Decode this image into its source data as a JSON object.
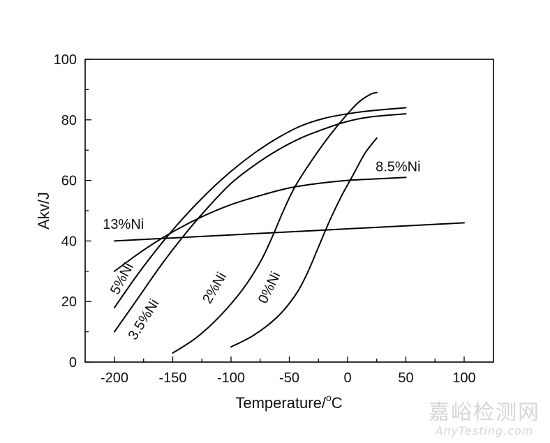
{
  "chart_data": {
    "type": "line",
    "title": "",
    "xlabel": "Temperature/°C",
    "xlabel_main": "Temperature/",
    "xlabel_sup": "o",
    "xlabel_unit": "C",
    "ylabel": "Akv/J",
    "xlim": [
      -225,
      125
    ],
    "ylim": [
      0,
      100
    ],
    "grid": false,
    "legend": "inline curve labels",
    "x_ticks": [
      -200,
      -150,
      -100,
      -50,
      0,
      50,
      100
    ],
    "x_tick_labels": [
      "-200",
      "-150",
      "-100",
      "-50",
      "0",
      "50",
      "100"
    ],
    "y_ticks": [
      0,
      20,
      40,
      60,
      80,
      100
    ],
    "y_tick_labels": [
      "0",
      "20",
      "40",
      "60",
      "80",
      "100"
    ],
    "series": [
      {
        "name": "0%Ni",
        "x": [
          -100,
          -80,
          -60,
          -45,
          -35,
          -25,
          -15,
          -5,
          5,
          15,
          25
        ],
        "y": [
          5,
          9,
          15,
          22,
          29,
          38,
          47,
          55,
          62,
          69,
          74
        ]
      },
      {
        "name": "2%Ni",
        "x": [
          -150,
          -130,
          -110,
          -90,
          -75,
          -65,
          -55,
          -45,
          -30,
          -15,
          0,
          10,
          20,
          25
        ],
        "y": [
          3,
          8,
          15,
          24,
          33,
          41,
          50,
          58,
          67,
          75,
          82,
          86,
          88.5,
          89
        ]
      },
      {
        "name": "3.5%Ni",
        "x": [
          -200,
          -180,
          -160,
          -140,
          -120,
          -100,
          -80,
          -60,
          -40,
          -20,
          0,
          20,
          50
        ],
        "y": [
          10,
          21,
          32,
          42,
          51,
          59,
          65,
          70,
          74,
          77,
          79.5,
          81,
          82
        ]
      },
      {
        "name": "5%Ni",
        "x": [
          -200,
          -180,
          -160,
          -140,
          -120,
          -100,
          -80,
          -60,
          -40,
          -20,
          0,
          20,
          50
        ],
        "y": [
          18,
          29,
          39,
          48,
          56,
          63,
          69,
          74,
          78,
          80.5,
          82,
          83,
          84
        ]
      },
      {
        "name": "8.5%Ni",
        "x": [
          -200,
          -175,
          -150,
          -125,
          -100,
          -75,
          -50,
          -25,
          0,
          25,
          50
        ],
        "y": [
          30,
          37,
          43,
          48,
          52,
          55,
          57.5,
          59,
          60,
          60.5,
          61
        ]
      },
      {
        "name": "13%Ni",
        "x": [
          -200,
          -150,
          -100,
          -50,
          0,
          50,
          100
        ],
        "y": [
          40,
          41,
          42,
          43,
          44,
          45,
          46
        ]
      }
    ],
    "annotations": [
      {
        "text": "13%Ni",
        "x": -210,
        "y": 44,
        "rotation": 0
      },
      {
        "text": "8.5%Ni",
        "x": 24,
        "y": 63,
        "rotation": 0
      },
      {
        "text": "5%Ni",
        "x": -197,
        "y": 22,
        "rotation": -62
      },
      {
        "text": "3.5%Ni",
        "x": -182,
        "y": 7,
        "rotation": -58
      },
      {
        "text": "2%Ni",
        "x": -118,
        "y": 19,
        "rotation": -60
      },
      {
        "text": "0%Ni",
        "x": -70,
        "y": 19,
        "rotation": -64
      }
    ]
  },
  "watermark": {
    "cn": "嘉峪检测网",
    "en": "AnyTesting.com"
  }
}
